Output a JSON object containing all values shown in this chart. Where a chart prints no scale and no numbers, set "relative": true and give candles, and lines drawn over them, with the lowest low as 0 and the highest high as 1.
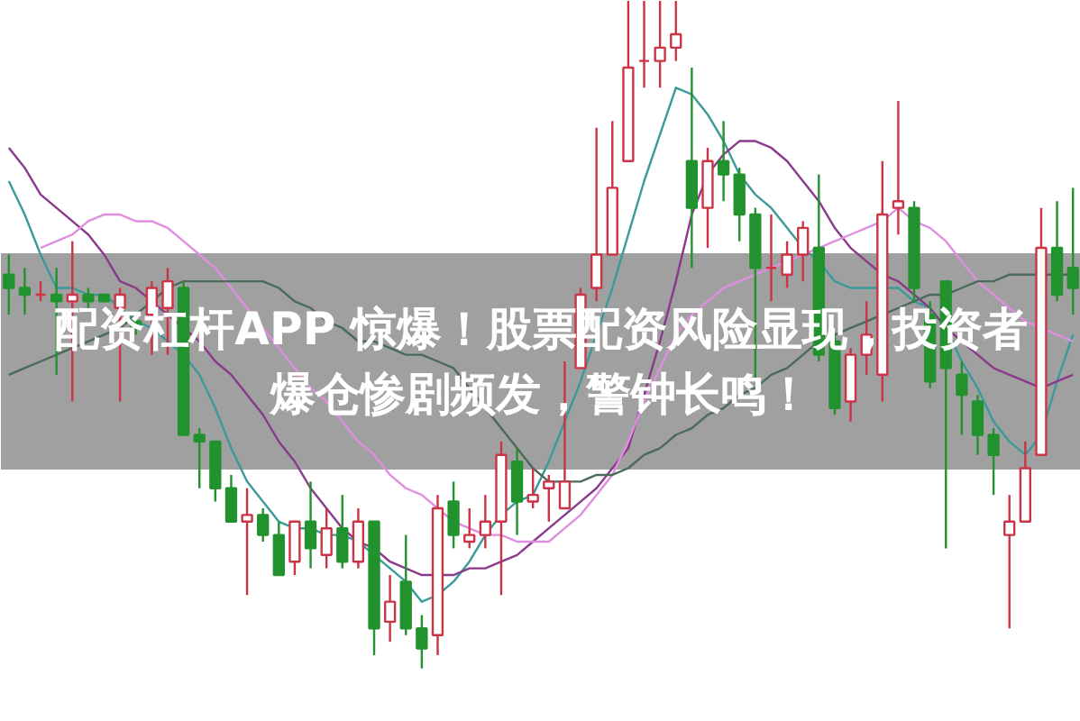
{
  "chart_data": {
    "type": "candlestick",
    "title": "配资杠杆APP 惊爆！股票配资风险显现，投资者爆仓惨剧频发，警钟长鸣！",
    "relative": true,
    "categories": [
      null,
      null,
      null,
      null,
      null,
      null,
      null,
      null,
      null,
      null,
      null,
      null,
      null,
      null,
      null,
      null,
      null,
      null,
      null,
      null,
      null,
      null,
      null,
      null,
      null,
      null,
      null,
      null,
      null,
      null,
      null,
      null,
      null,
      null,
      null,
      null,
      null,
      null,
      null,
      null,
      null,
      null,
      null,
      null,
      null,
      null,
      null,
      null,
      null,
      null,
      null,
      null,
      null,
      null,
      null,
      null,
      null,
      null,
      null,
      null,
      null,
      null,
      null,
      null,
      null,
      null,
      null,
      null
    ],
    "colors": [
      "#22922e",
      "#22922e",
      "#cc3344",
      "#22922e",
      "#cc3344",
      "#22922e",
      "#22922e",
      "#cc3344",
      "#22922e",
      "#cc3344",
      "#cc3344",
      "#22922e",
      "#22922e",
      "#22922e",
      "#22922e",
      "#cc3344",
      "#22922e",
      "#22922e",
      "#cc3344",
      "#22922e",
      "#cc3344",
      "#22922e",
      "#cc3344",
      "#22922e",
      "#cc3344",
      "#22922e",
      "#22922e",
      "#cc3344",
      "#22922e",
      "#cc3344",
      "#cc3344",
      "#cc3344",
      "#22922e",
      "#cc3344",
      "#cc3344",
      "#cc3344",
      "#cc3344",
      "#cc3344",
      "#cc3344",
      "#cc3344",
      "#cc3344",
      "#cc3344",
      "#cc3344",
      "#22922e",
      "#cc3344",
      "#22922e",
      "#22922e",
      "#22922e",
      "#cc3344",
      "#cc3344",
      "#cc3344",
      "#22922e",
      "#22922e",
      "#cc3344",
      "#cc3344",
      "#cc3344",
      "#cc3344",
      "#22922e",
      "#22922e",
      "#22922e",
      "#22922e",
      "#22922e",
      "#22922e",
      "#cc3344",
      "#cc3344",
      "#cc3344",
      "#22922e",
      "#22922e"
    ],
    "ohlc": [
      [
        0.59,
        0.62,
        0.53,
        0.57
      ],
      [
        0.57,
        0.6,
        0.53,
        0.56
      ],
      [
        0.56,
        0.58,
        0.55,
        0.56
      ],
      [
        0.56,
        0.6,
        0.44,
        0.55
      ],
      [
        0.55,
        0.64,
        0.4,
        0.56
      ],
      [
        0.56,
        0.57,
        0.54,
        0.55
      ],
      [
        0.56,
        0.56,
        0.55,
        0.55
      ],
      [
        0.54,
        0.57,
        0.4,
        0.56
      ],
      [
        0.52,
        0.52,
        0.5,
        0.51
      ],
      [
        0.53,
        0.58,
        0.47,
        0.57
      ],
      [
        0.54,
        0.6,
        0.47,
        0.58
      ],
      [
        0.57,
        0.58,
        0.35,
        0.35
      ],
      [
        0.35,
        0.36,
        0.27,
        0.34
      ],
      [
        0.34,
        0.34,
        0.25,
        0.27
      ],
      [
        0.27,
        0.29,
        0.22,
        0.22
      ],
      [
        0.22,
        0.27,
        0.11,
        0.23
      ],
      [
        0.23,
        0.24,
        0.19,
        0.2
      ],
      [
        0.2,
        0.22,
        0.14,
        0.14
      ],
      [
        0.16,
        0.22,
        0.14,
        0.22
      ],
      [
        0.22,
        0.28,
        0.15,
        0.18
      ],
      [
        0.17,
        0.24,
        0.15,
        0.21
      ],
      [
        0.21,
        0.26,
        0.15,
        0.16
      ],
      [
        0.16,
        0.24,
        0.15,
        0.22
      ],
      [
        0.22,
        0.22,
        0.02,
        0.06
      ],
      [
        0.07,
        0.14,
        0.04,
        0.1
      ],
      [
        0.13,
        0.2,
        0.05,
        0.06
      ],
      [
        0.06,
        0.08,
        0.0,
        0.03
      ],
      [
        0.05,
        0.26,
        0.02,
        0.24
      ],
      [
        0.25,
        0.28,
        0.18,
        0.2
      ],
      [
        0.19,
        0.24,
        0.18,
        0.2
      ],
      [
        0.2,
        0.26,
        0.18,
        0.22
      ],
      [
        0.22,
        0.34,
        0.11,
        0.32
      ],
      [
        0.31,
        0.33,
        0.2,
        0.25
      ],
      [
        0.25,
        0.3,
        0.24,
        0.26
      ],
      [
        0.27,
        0.29,
        0.22,
        0.28
      ],
      [
        0.24,
        0.46,
        0.24,
        0.28
      ],
      [
        0.45,
        0.57,
        0.45,
        0.56
      ],
      [
        0.57,
        0.81,
        0.55,
        0.62
      ],
      [
        0.62,
        0.82,
        0.62,
        0.72
      ],
      [
        0.76,
        1.0,
        0.76,
        0.9
      ],
      [
        0.91,
        1.0,
        0.87,
        0.91
      ],
      [
        0.91,
        1.0,
        0.87,
        0.93
      ],
      [
        0.93,
        1.0,
        0.91,
        0.95
      ],
      [
        0.76,
        0.9,
        0.6,
        0.69
      ],
      [
        0.69,
        0.78,
        0.63,
        0.76
      ],
      [
        0.76,
        0.82,
        0.7,
        0.74
      ],
      [
        0.74,
        0.75,
        0.64,
        0.68
      ],
      [
        0.68,
        0.69,
        0.43,
        0.6
      ],
      [
        0.6,
        0.68,
        0.55,
        0.6
      ],
      [
        0.59,
        0.64,
        0.57,
        0.62
      ],
      [
        0.62,
        0.67,
        0.58,
        0.66
      ],
      [
        0.63,
        0.74,
        0.46,
        0.47
      ],
      [
        0.49,
        0.5,
        0.38,
        0.39
      ],
      [
        0.4,
        0.48,
        0.37,
        0.47
      ],
      [
        0.47,
        0.55,
        0.44,
        0.5
      ],
      [
        0.44,
        0.76,
        0.4,
        0.68
      ],
      [
        0.69,
        0.85,
        0.65,
        0.7
      ],
      [
        0.69,
        0.7,
        0.55,
        0.57
      ],
      [
        0.53,
        0.55,
        0.42,
        0.43
      ],
      [
        0.58,
        0.58,
        0.18,
        0.45
      ],
      [
        0.44,
        0.46,
        0.35,
        0.41
      ],
      [
        0.4,
        0.41,
        0.32,
        0.35
      ],
      [
        0.35,
        0.36,
        0.26,
        0.32
      ],
      [
        0.2,
        0.26,
        0.06,
        0.22
      ],
      [
        0.22,
        0.34,
        0.22,
        0.3
      ],
      [
        0.32,
        0.69,
        0.32,
        0.63
      ],
      [
        0.63,
        0.7,
        0.55,
        0.56
      ],
      [
        0.6,
        0.72,
        0.53,
        0.57
      ]
    ],
    "series": [
      {
        "type": "line",
        "color": "#3a9a9a",
        "values": [
          0.73,
          0.68,
          0.62,
          0.57,
          0.57,
          0.56,
          0.56,
          0.54,
          0.52,
          0.51,
          0.49,
          0.47,
          0.44,
          0.39,
          0.33,
          0.28,
          0.25,
          0.22,
          0.21,
          0.21,
          0.2,
          0.2,
          0.19,
          0.17,
          0.15,
          0.13,
          0.1,
          0.11,
          0.13,
          0.16,
          0.2,
          0.23,
          0.25,
          0.26,
          0.31,
          0.37,
          0.43,
          0.5,
          0.57,
          0.65,
          0.73,
          0.8,
          0.87,
          0.86,
          0.83,
          0.79,
          0.74,
          0.71,
          0.69,
          0.66,
          0.63,
          0.61,
          0.58,
          0.57,
          0.57,
          0.57,
          0.57,
          0.55,
          0.54,
          0.51,
          0.46,
          0.42,
          0.37,
          0.34,
          0.32,
          0.35,
          0.43,
          0.5
        ]
      },
      {
        "type": "line",
        "color": "#8b3a8b",
        "values": [
          0.78,
          0.75,
          0.71,
          0.69,
          0.67,
          0.65,
          0.62,
          0.58,
          0.57,
          0.55,
          0.53,
          0.51,
          0.49,
          0.46,
          0.44,
          0.41,
          0.38,
          0.34,
          0.31,
          0.27,
          0.24,
          0.21,
          0.19,
          0.18,
          0.16,
          0.15,
          0.14,
          0.14,
          0.14,
          0.15,
          0.15,
          0.16,
          0.17,
          0.19,
          0.21,
          0.23,
          0.25,
          0.27,
          0.3,
          0.33,
          0.41,
          0.49,
          0.58,
          0.68,
          0.74,
          0.77,
          0.79,
          0.79,
          0.78,
          0.76,
          0.73,
          0.7,
          0.66,
          0.63,
          0.61,
          0.59,
          0.58,
          0.56,
          0.54,
          0.51,
          0.49,
          0.47,
          0.45,
          0.44,
          0.43,
          0.42,
          0.43,
          0.44
        ]
      },
      {
        "type": "line",
        "color": "#e08ee0",
        "values": [
          null,
          null,
          0.63,
          0.64,
          0.65,
          0.67,
          0.68,
          0.68,
          0.67,
          0.67,
          0.66,
          0.64,
          0.62,
          0.6,
          0.57,
          0.54,
          0.51,
          0.48,
          0.45,
          0.42,
          0.4,
          0.37,
          0.34,
          0.32,
          0.29,
          0.27,
          0.26,
          0.24,
          0.22,
          0.21,
          0.2,
          0.2,
          0.19,
          0.19,
          0.19,
          0.21,
          0.23,
          0.26,
          0.29,
          0.34,
          0.4,
          0.45,
          0.5,
          0.53,
          0.55,
          0.57,
          0.58,
          0.59,
          0.6,
          0.61,
          0.62,
          0.63,
          0.64,
          0.65,
          0.66,
          0.67,
          0.69,
          0.67,
          0.66,
          0.64,
          0.61,
          0.58,
          0.56,
          0.54,
          0.52,
          0.51,
          0.5,
          0.49
        ]
      },
      {
        "type": "line",
        "color": "#4a6a5a",
        "values": [
          0.44,
          0.45,
          0.46,
          0.47,
          0.48,
          0.49,
          0.5,
          0.51,
          0.53,
          0.55,
          0.57,
          0.58,
          0.58,
          0.58,
          0.58,
          0.58,
          0.58,
          0.57,
          0.55,
          0.54,
          0.52,
          0.51,
          0.49,
          0.49,
          0.48,
          0.47,
          0.47,
          0.46,
          0.45,
          0.42,
          0.39,
          0.36,
          0.33,
          0.3,
          0.28,
          0.28,
          0.28,
          0.29,
          0.29,
          0.3,
          0.32,
          0.33,
          0.35,
          0.36,
          0.38,
          0.39,
          0.41,
          0.42,
          0.44,
          0.45,
          0.47,
          0.49,
          0.5,
          0.51,
          0.52,
          0.53,
          0.54,
          0.55,
          0.56,
          0.56,
          0.57,
          0.58,
          0.58,
          0.59,
          0.59,
          0.59,
          0.59,
          0.59
        ]
      }
    ]
  }
}
